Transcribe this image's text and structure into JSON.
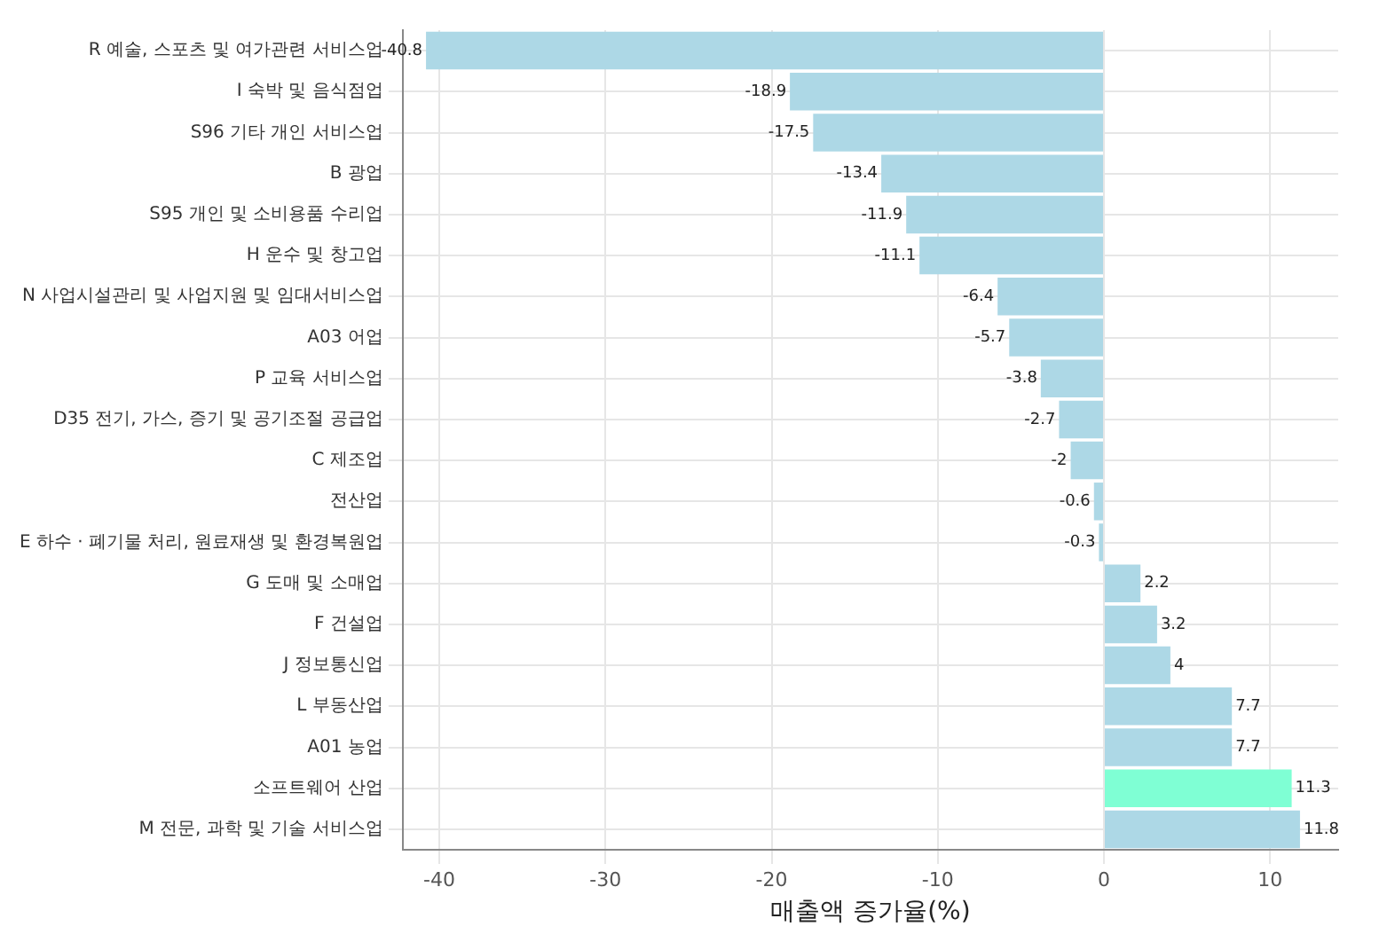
{
  "chart_data": {
    "type": "bar",
    "orientation": "horizontal",
    "xlabel": "매출액 증가율(%)",
    "categories": [
      "R 예술, 스포츠 및 여가관련 서비스업",
      "I 숙박 및 음식점업",
      "S96 기타 개인 서비스업",
      "B 광업",
      "S95 개인 및 소비용품 수리업",
      "H 운수 및 창고업",
      "N 사업시설관리 및 사업지원 및 임대서비스업",
      "A03 어업",
      "P 교육 서비스업",
      "D35 전기, 가스, 증기 및 공기조절 공급업",
      "C 제조업",
      "전산업",
      "E 하수 · 폐기물 처리, 원료재생 및 환경복원업",
      "G 도매 및 소매업",
      "F 건설업",
      "J 정보통신업",
      "L 부동산업",
      "A01 농업",
      "소프트웨어 산업",
      "M 전문, 과학 및 기술 서비스업"
    ],
    "values": [
      -40.8,
      -18.9,
      -17.5,
      -13.4,
      -11.9,
      -11.1,
      -6.4,
      -5.7,
      -3.8,
      -2.7,
      -2,
      -0.6,
      -0.3,
      2.2,
      3.2,
      4,
      7.7,
      7.7,
      11.3,
      11.8
    ],
    "colors": [
      "#add8e6",
      "#add8e6",
      "#add8e6",
      "#add8e6",
      "#add8e6",
      "#add8e6",
      "#add8e6",
      "#add8e6",
      "#add8e6",
      "#add8e6",
      "#add8e6",
      "#add8e6",
      "#add8e6",
      "#add8e6",
      "#add8e6",
      "#add8e6",
      "#add8e6",
      "#add8e6",
      "#7fffd4",
      "#add8e6"
    ],
    "xlim": [
      -42.2,
      14.1
    ],
    "xticks": [
      -40,
      -30,
      -20,
      -10,
      0,
      10
    ],
    "grid": true,
    "data_labels": true
  }
}
